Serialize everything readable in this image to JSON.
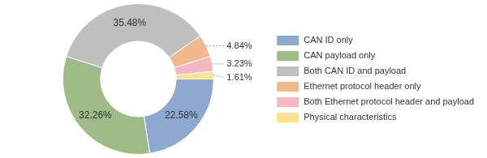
{
  "chart_data": {
    "type": "doughnut",
    "categories": [
      "CAN ID only",
      "CAN payload only",
      "Both CAN ID and payload",
      "Ethernet protocol header only",
      "Both Ethernet protocol header and payload",
      "Physical characteristics"
    ],
    "values": [
      22.58,
      32.26,
      35.48,
      4.84,
      3.23,
      1.61
    ],
    "value_labels": [
      "22.58%",
      "32.26%",
      "35.48%",
      "4.84%",
      "3.23%",
      "1.61%"
    ],
    "colors": [
      "#8ea9d0",
      "#9fbb88",
      "#bfbfbf",
      "#f2b98c",
      "#f3b8c4",
      "#fbe38d"
    ],
    "data_labels": true,
    "legend": "right"
  }
}
